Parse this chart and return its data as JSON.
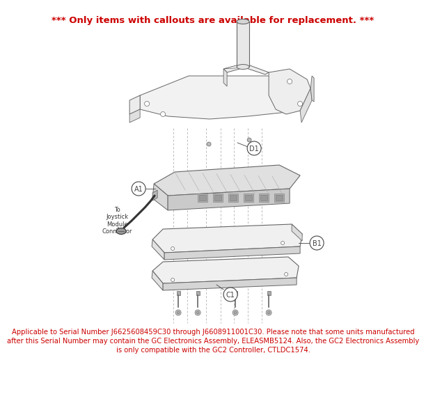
{
  "title_text": "*** Only items with callouts are available for replacement. ***",
  "title_color": "#cc0000",
  "title_fontsize": 9.5,
  "bg_color": "#ffffff",
  "footer_text": "Applicable to Serial Number J6625608459C30 through J6608911001C30. Please note that some units manufactured\nafter this Serial Number may contain the GC Electronics Assembly, ELEASMB5124. Also, the GC2 Electronics Assembly\nis only compatible with the GC2 Controller, CTLDC1574.",
  "footer_color": "#cc0000",
  "footer_fontsize": 7.2,
  "callout_color": "#444444",
  "line_color": "#666666",
  "dline_color": "#aaaaaa",
  "face_color": "#f5f5f5",
  "face_color2": "#e8e8e8",
  "face_color3": "#dcdcdc"
}
